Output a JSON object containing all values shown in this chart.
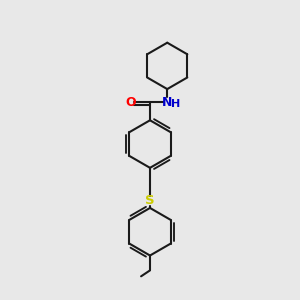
{
  "background_color": "#e8e8e8",
  "line_color": "#1a1a1a",
  "bond_width": 1.5,
  "atom_colors": {
    "O": "#ff0000",
    "N": "#0000cc",
    "S": "#cccc00",
    "C": "#1a1a1a"
  },
  "figsize": [
    3.0,
    3.0
  ],
  "dpi": 100
}
